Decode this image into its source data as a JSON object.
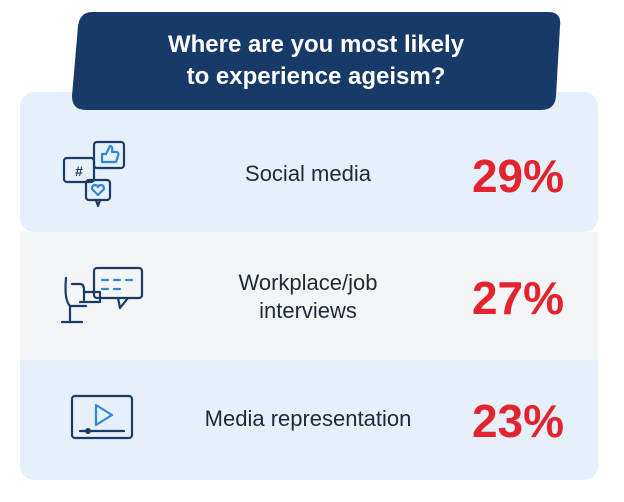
{
  "header": {
    "title_lines": [
      "Where are you most likely",
      "to experience ageism?"
    ]
  },
  "items": [
    {
      "label_lines": [
        "Social media"
      ],
      "value": "29%"
    },
    {
      "label_lines": [
        "Workplace/job",
        "interviews"
      ],
      "value": "27%"
    },
    {
      "label_lines": [
        "Media representation"
      ],
      "value": "23%"
    }
  ]
}
